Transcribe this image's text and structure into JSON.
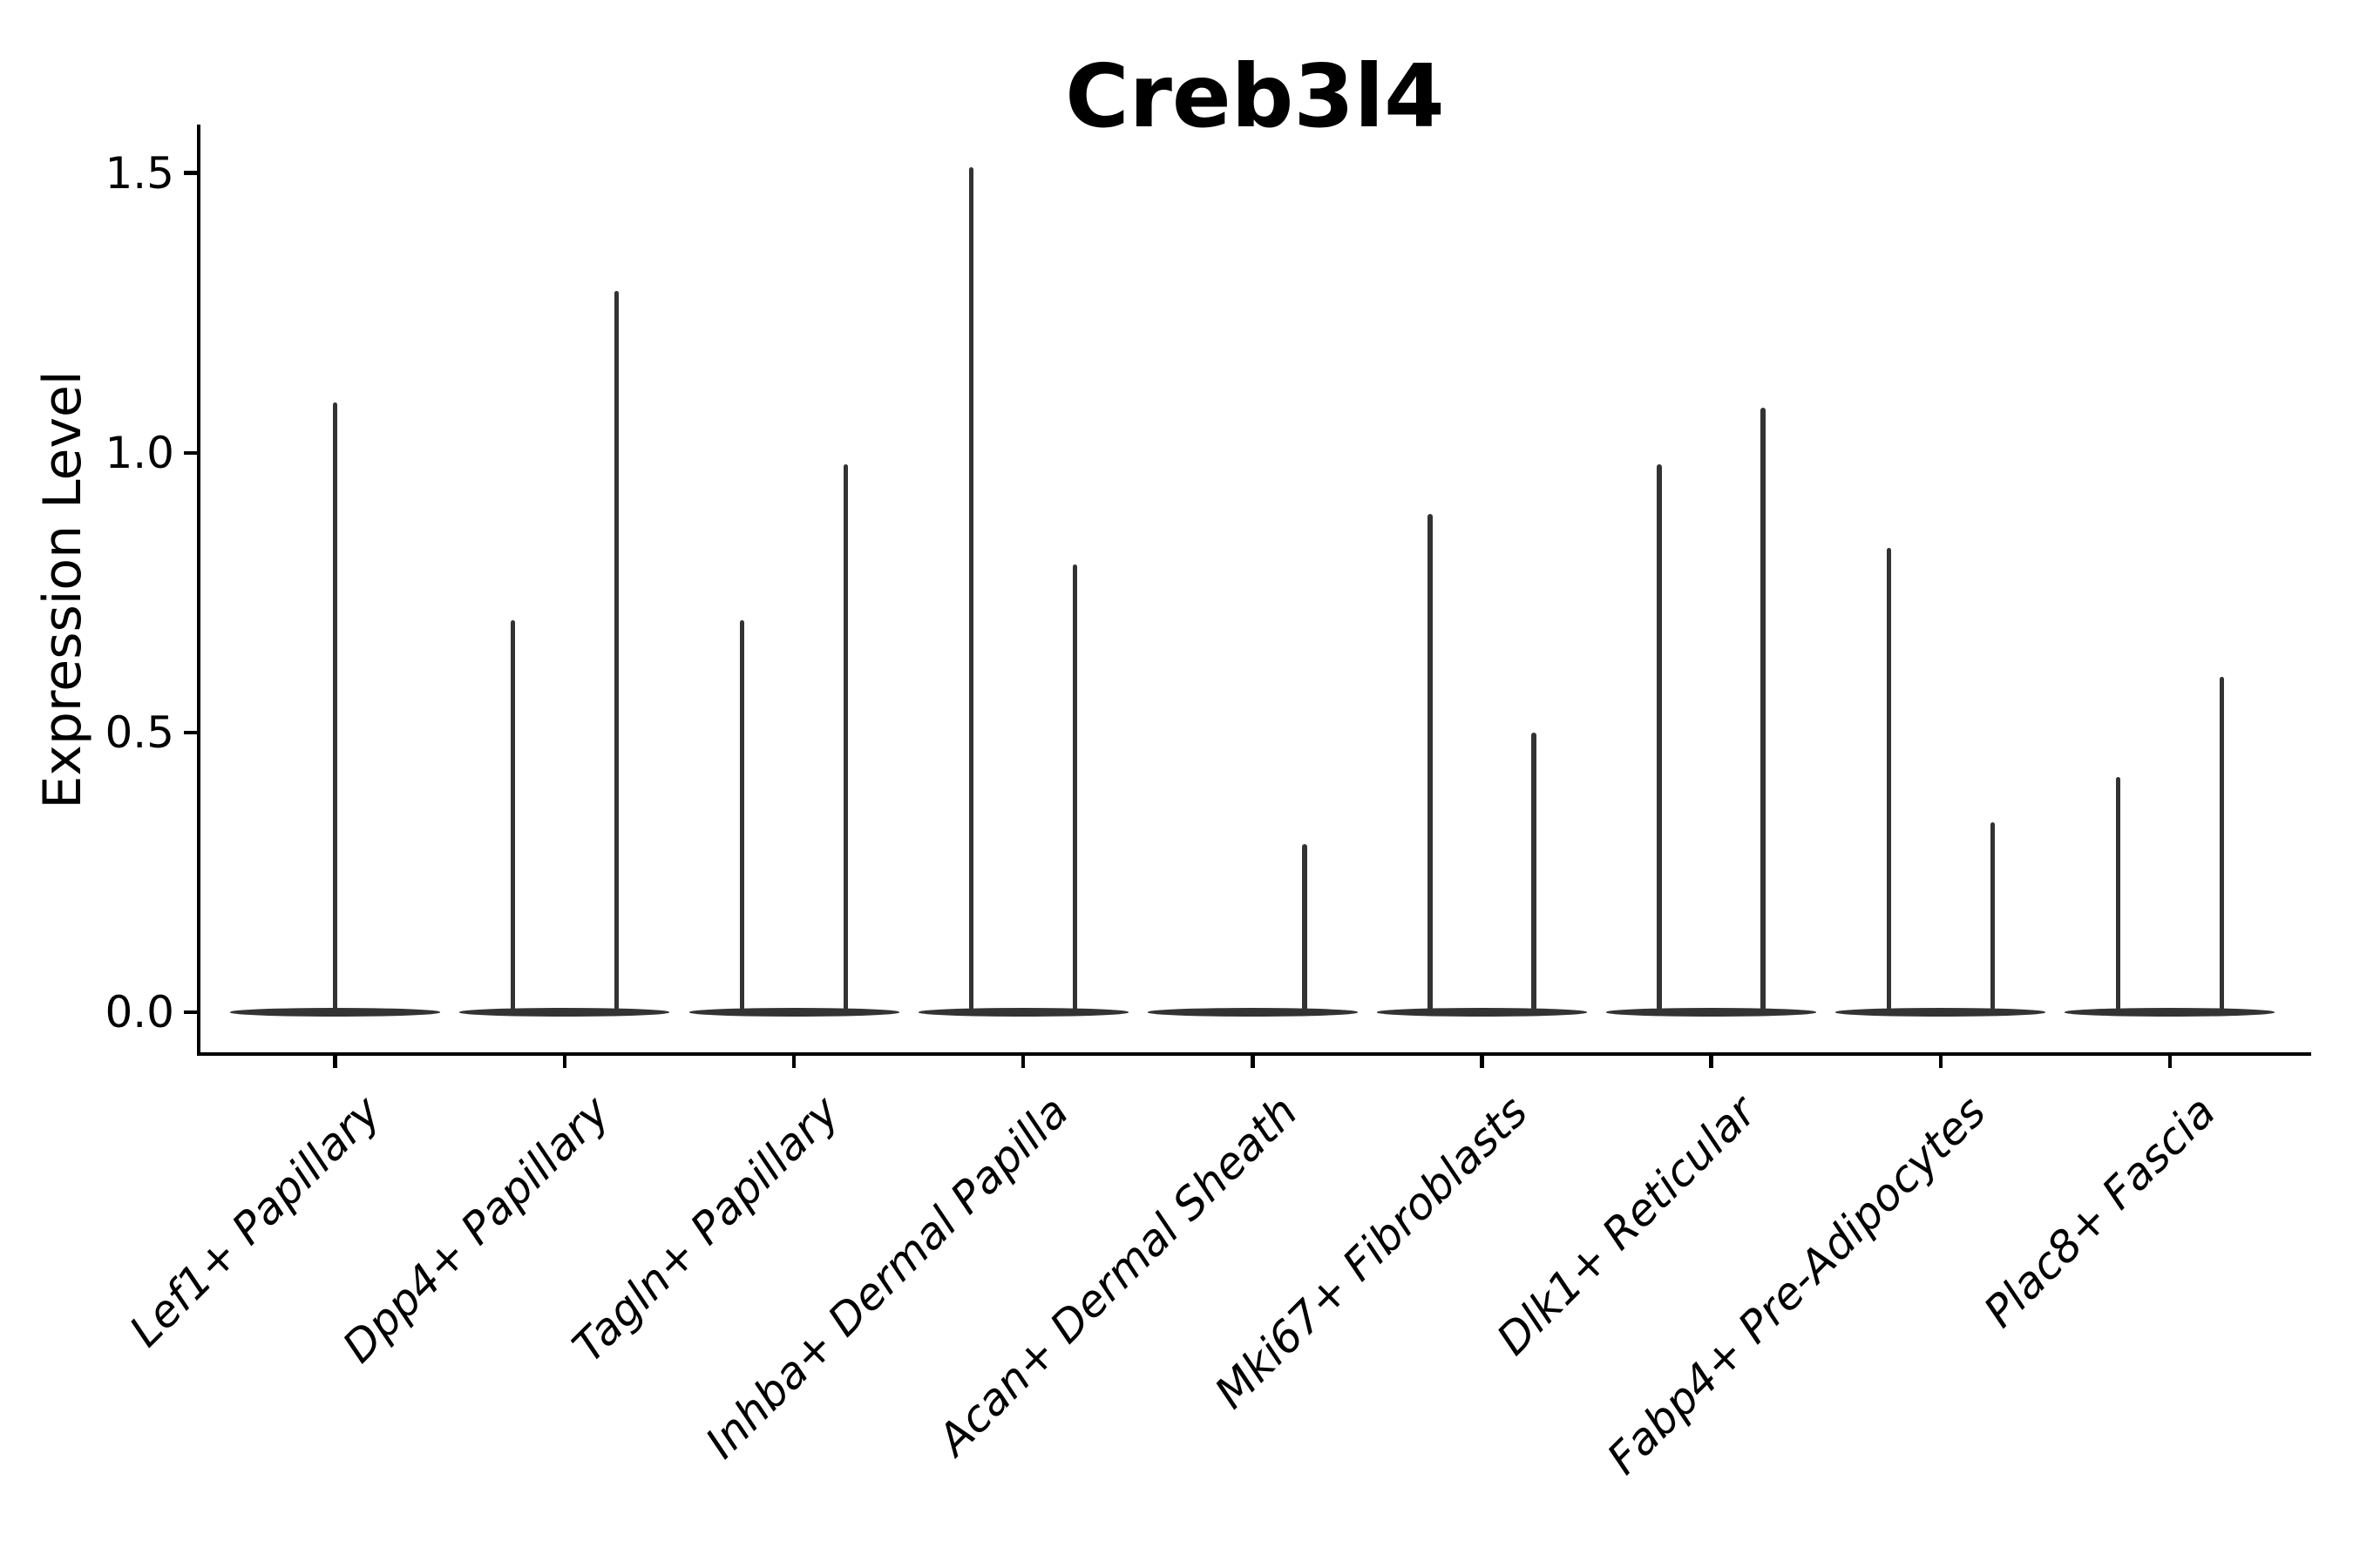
{
  "figure": {
    "background": "#ffffff",
    "violin_color": "#333333",
    "axis_color": "#000000",
    "text_color": "#000000"
  },
  "chart_data": {
    "type": "violin",
    "title": "Creb3l4",
    "xlabel": "",
    "ylabel": "Expression Level",
    "ytick_labels": [
      "0.0",
      "0.5",
      "1.0",
      "1.5"
    ],
    "ytick_values": [
      0.0,
      0.5,
      1.0,
      1.5
    ],
    "ylim": [
      -0.072,
      1.587
    ],
    "grid": false,
    "legend": "none",
    "categories": [
      "Lef1+ Papillary",
      "Dpp4+ Papillary",
      "Tagln+ Papillary",
      "Inhba+ Dermal Papilla",
      "Acan+ Dermal Sheath",
      "Mki67+ Fibroblasts",
      "Dlk1+ Reticular",
      "Fabp4+ Pre-Adipocytes",
      "Plac8+ Fascia"
    ],
    "violins": [
      {
        "category": "Lef1+ Papillary",
        "spikes": [
          {
            "position": "center",
            "max": 1.09
          }
        ]
      },
      {
        "category": "Dpp4+ Papillary",
        "spikes": [
          {
            "position": "left",
            "max": 0.7
          },
          {
            "position": "right",
            "max": 1.29
          }
        ]
      },
      {
        "category": "Tagln+ Papillary",
        "spikes": [
          {
            "position": "left",
            "max": 0.7
          },
          {
            "position": "right",
            "max": 0.98
          }
        ]
      },
      {
        "category": "Inhba+ Dermal Papilla",
        "spikes": [
          {
            "position": "left",
            "max": 1.51
          },
          {
            "position": "right",
            "max": 0.8
          }
        ]
      },
      {
        "category": "Acan+ Dermal Sheath",
        "spikes": [
          {
            "position": "right",
            "max": 0.3
          }
        ]
      },
      {
        "category": "Mki67+ Fibroblasts",
        "spikes": [
          {
            "position": "left",
            "max": 0.89
          },
          {
            "position": "right",
            "max": 0.5
          }
        ]
      },
      {
        "category": "Dlk1+ Reticular",
        "spikes": [
          {
            "position": "left",
            "max": 0.98
          },
          {
            "position": "right",
            "max": 1.08
          }
        ]
      },
      {
        "category": "Fabp4+ Pre-Adipocytes",
        "spikes": [
          {
            "position": "left",
            "max": 0.83
          },
          {
            "position": "right",
            "max": 0.34
          }
        ]
      },
      {
        "category": "Plac8+ Fascia",
        "spikes": [
          {
            "position": "left",
            "max": 0.42
          },
          {
            "position": "right",
            "max": 0.6
          }
        ]
      }
    ],
    "baseline_value": 0.0
  }
}
